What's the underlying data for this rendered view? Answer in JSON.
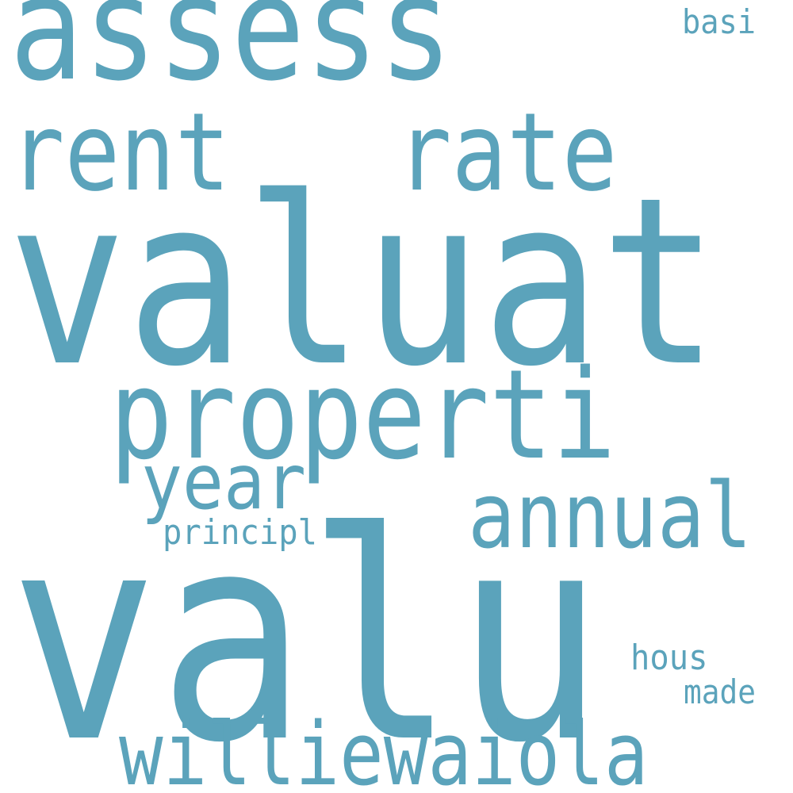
{
  "cloud": {
    "color": "#5ba3bb",
    "background": "#ffffff",
    "words": {
      "assess": "assess",
      "basi": "basi",
      "rent": "rent",
      "rate": "rate",
      "valuat": "valuat",
      "properti": "properti",
      "year": "year",
      "annual": "annual",
      "principl": "principl",
      "valu": "valu",
      "hous": "hous",
      "made": "made",
      "williewaiola": "williewaiola"
    }
  }
}
